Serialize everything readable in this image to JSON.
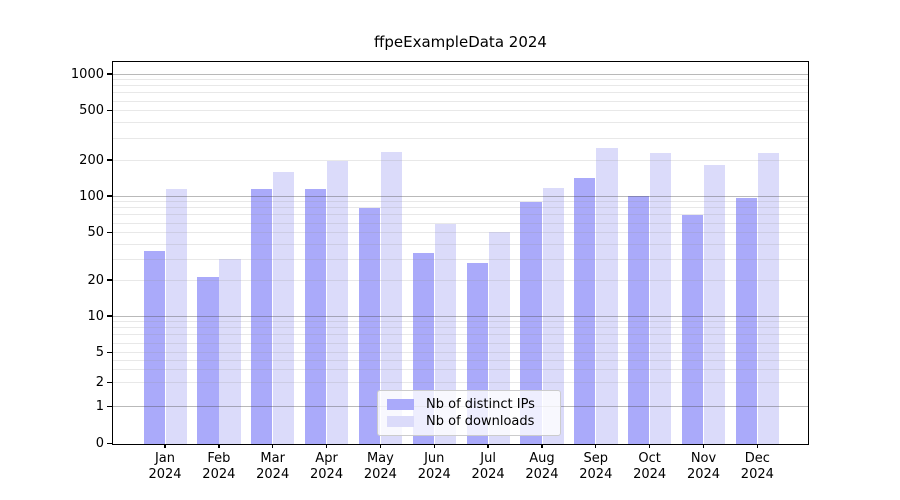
{
  "title": "ffpeExampleData 2024",
  "chart_data": {
    "type": "bar",
    "title": "ffpeExampleData 2024",
    "categories": [
      "Jan 2024",
      "Feb 2024",
      "Mar 2024",
      "Apr 2024",
      "May 2024",
      "Jun 2024",
      "Jul 2024",
      "Aug 2024",
      "Sep 2024",
      "Oct 2024",
      "Nov 2024",
      "Dec 2024"
    ],
    "series": [
      {
        "name": "Nb of distinct IPs",
        "color": "#aaaafa",
        "values": [
          35,
          21,
          114,
          114,
          80,
          34,
          28,
          90,
          142,
          100,
          70,
          96
        ]
      },
      {
        "name": "Nb of downloads",
        "color": "#dbdbfa",
        "values": [
          115,
          30,
          158,
          196,
          230,
          59,
          51,
          116,
          250,
          226,
          183,
          228
        ]
      }
    ],
    "xlabel": "",
    "ylabel": "",
    "yscale": "symlog",
    "y_ticks": [
      0,
      1,
      2,
      5,
      10,
      20,
      50,
      100,
      200,
      500,
      1000
    ],
    "ylim": [
      0,
      1300
    ],
    "grid": "both, gridlines drawn above bars",
    "legend_position": "lower center"
  },
  "colors": {
    "series1": "#aaaafa",
    "series2": "#dbdbfa",
    "grid_major": "#b1b1b1",
    "grid_minor": "#e6e6e6",
    "axis": "#000000",
    "legend_border": "#cccccc"
  }
}
